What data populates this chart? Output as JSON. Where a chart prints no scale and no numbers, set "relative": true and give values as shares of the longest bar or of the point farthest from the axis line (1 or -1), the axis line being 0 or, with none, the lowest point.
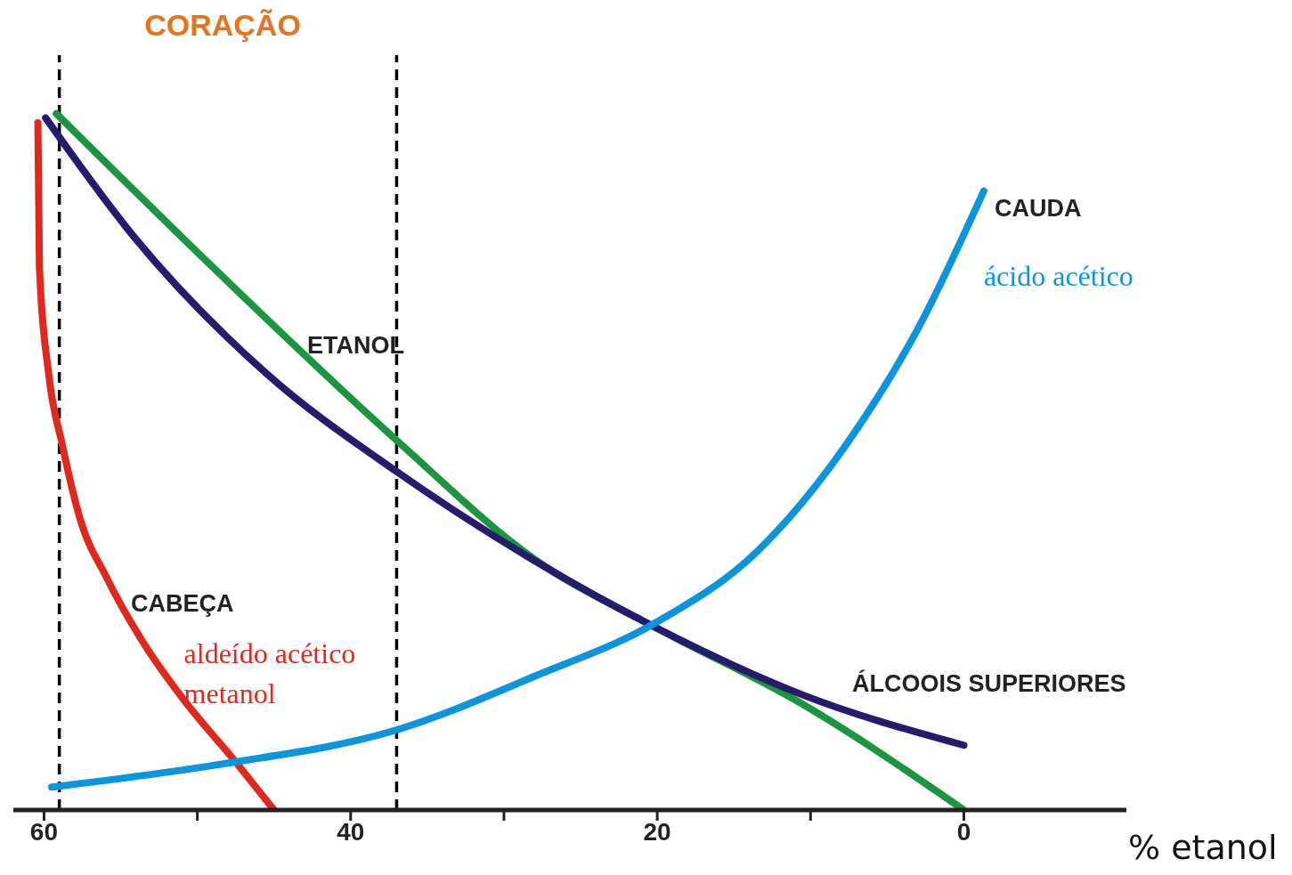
{
  "chart_data": {
    "type": "line",
    "relative": true,
    "xlabel": "% etanol",
    "xlim": [
      62,
      -10.6
    ],
    "xticks": [
      60,
      {
        "value": 50,
        "label": null
      },
      40,
      {
        "value": 30,
        "label": null
      },
      20,
      {
        "value": 10,
        "label": null
      },
      0
    ],
    "grid": false,
    "legend": false,
    "marker": "none",
    "line_style": "solid",
    "ref_lines": [
      {
        "axis": "x",
        "value": 59,
        "color": "#000000",
        "line_style": "dashed"
      },
      {
        "axis": "x",
        "value": 37,
        "color": "#000000",
        "line_style": "dashed"
      }
    ],
    "annotations": [
      "CORAÇÃO",
      "CABEÇA",
      "ETANOL",
      "CAUDA",
      "ÁLCOOIS SUPERIORES"
    ],
    "series": [
      {
        "name": "aldeído acético metanol",
        "color": "#e0281e",
        "x": [
          60.4,
          60.3,
          59.7,
          58.8,
          57.7,
          55.9,
          53.6,
          50.7,
          47.8,
          45
        ],
        "values": [
          0.987,
          0.78,
          0.627,
          0.524,
          0.422,
          0.333,
          0.243,
          0.153,
          0.077,
          0
        ]
      },
      {
        "color": "#1a9641",
        "x": [
          59.2,
          48.4,
          37,
          28,
          20.1,
          10.6,
          0
        ],
        "values": [
          1,
          0.767,
          0.531,
          0.36,
          0.262,
          0.153,
          0
        ]
      },
      {
        "color": "#261c6e",
        "x": [
          59.9,
          54.2,
          45.5,
          37,
          28,
          20.1,
          10.6,
          0
        ],
        "values": [
          0.994,
          0.825,
          0.627,
          0.486,
          0.358,
          0.262,
          0.166,
          0.093
        ]
      },
      {
        "name": "ácido acético",
        "color": "#0c95dc",
        "x": [
          59.5,
          48.4,
          37,
          28,
          20.1,
          13.5,
          7.7,
          3,
          -1.3
        ],
        "values": [
          0.033,
          0.066,
          0.115,
          0.192,
          0.269,
          0.371,
          0.524,
          0.691,
          0.889
        ]
      }
    ]
  }
}
